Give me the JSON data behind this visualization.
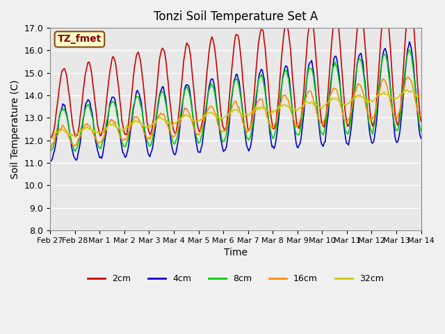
{
  "title": "Tonzi Soil Temperature Set A",
  "xlabel": "Time",
  "ylabel": "Soil Temperature (C)",
  "label_annotation": "TZ_fmet",
  "ylim": [
    8.0,
    17.0
  ],
  "yticks": [
    8.0,
    9.0,
    10.0,
    11.0,
    12.0,
    13.0,
    14.0,
    15.0,
    16.0,
    17.0
  ],
  "x_labels": [
    "Feb 27",
    "Feb 28",
    "Mar 1",
    "Mar 2",
    "Mar 3",
    "Mar 4",
    "Mar 5",
    "Mar 6",
    "Mar 7",
    "Mar 8",
    "Mar 9",
    "Mar 10",
    "Mar 11",
    "Mar 12",
    "Mar 13",
    "Mar 14"
  ],
  "colors": {
    "2cm": "#cc0000",
    "4cm": "#0000cc",
    "8cm": "#00cc00",
    "16cm": "#ff8800",
    "32cm": "#cccc00"
  },
  "legend_labels": [
    "2cm",
    "4cm",
    "8cm",
    "16cm",
    "32cm"
  ],
  "fig_facecolor": "#f0f0f0",
  "ax_facecolor": "#e8e8e8",
  "grid_color": "#ffffff"
}
